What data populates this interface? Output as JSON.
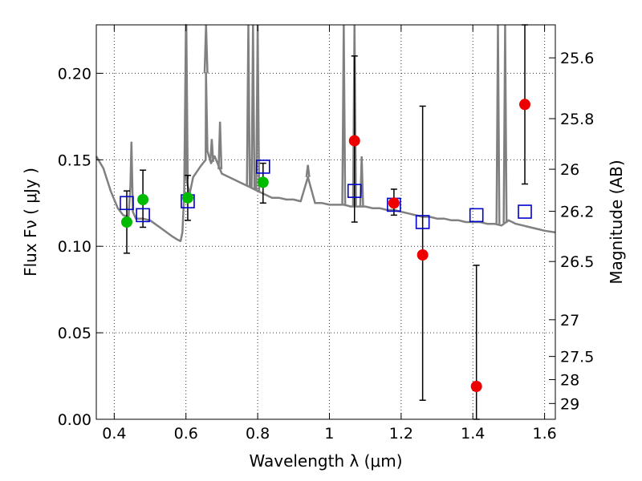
{
  "chart_data": {
    "type": "scatter",
    "xlabel": "Wavelength  λ (μm)",
    "ylabel": "Flux  Fν  ( μJy )",
    "y2label": "Magnitude (AB)",
    "xlim": [
      0.35,
      1.63
    ],
    "ylim": [
      0.0,
      0.228
    ],
    "grid": true,
    "x_ticks": [
      {
        "value": 0.4,
        "label": "0.4"
      },
      {
        "value": 0.6,
        "label": "0.6"
      },
      {
        "value": 0.8,
        "label": "0.8"
      },
      {
        "value": 1.0,
        "label": "1"
      },
      {
        "value": 1.2,
        "label": "1.2"
      },
      {
        "value": 1.4,
        "label": "1.4"
      },
      {
        "value": 1.6,
        "label": "1.6"
      }
    ],
    "y_ticks": [
      {
        "value": 0.0,
        "label": "0.00"
      },
      {
        "value": 0.05,
        "label": "0.05"
      },
      {
        "value": 0.1,
        "label": "0.10"
      },
      {
        "value": 0.15,
        "label": "0.15"
      },
      {
        "value": 0.2,
        "label": "0.20"
      }
    ],
    "y2_ticks": [
      {
        "mag": 25.6,
        "label": "25.6"
      },
      {
        "mag": 25.8,
        "label": "25.8"
      },
      {
        "mag": 26.0,
        "label": "26"
      },
      {
        "mag": 26.2,
        "label": "26.2"
      },
      {
        "mag": 26.5,
        "label": "26.5"
      },
      {
        "mag": 27.0,
        "label": "27"
      },
      {
        "mag": 27.5,
        "label": "27.5"
      },
      {
        "mag": 28.0,
        "label": "28"
      },
      {
        "mag": 29.0,
        "label": "29"
      }
    ],
    "model_spectrum": {
      "color": "#808080",
      "x": [
        0.35,
        0.37,
        0.39,
        0.41,
        0.425,
        0.44,
        0.445,
        0.448,
        0.452,
        0.46,
        0.48,
        0.5,
        0.52,
        0.54,
        0.56,
        0.575,
        0.585,
        0.59,
        0.595,
        0.6,
        0.6,
        0.6,
        0.61,
        0.62,
        0.64,
        0.655,
        0.656,
        0.66,
        0.67,
        0.68,
        0.7,
        0.72,
        0.74,
        0.76,
        0.78,
        0.79,
        0.8,
        0.82,
        0.84,
        0.86,
        0.88,
        0.9,
        0.92,
        0.94,
        0.96,
        0.98,
        1.0,
        1.02,
        1.04,
        1.06,
        1.08,
        1.1,
        1.12,
        1.14,
        1.16,
        1.18,
        1.2,
        1.22,
        1.24,
        1.26,
        1.28,
        1.3,
        1.32,
        1.34,
        1.36,
        1.38,
        1.4,
        1.42,
        1.44,
        1.46,
        1.48,
        1.5,
        1.52,
        1.54,
        1.56,
        1.58,
        1.6,
        1.63
      ],
      "y": [
        0.152,
        0.145,
        0.132,
        0.122,
        0.118,
        0.117,
        0.135,
        0.16,
        0.12,
        0.116,
        0.116,
        0.115,
        0.112,
        0.109,
        0.106,
        0.104,
        0.103,
        0.108,
        0.13,
        0.23,
        0.18,
        0.14,
        0.13,
        0.14,
        0.146,
        0.15,
        0.2,
        0.155,
        0.148,
        0.152,
        0.142,
        0.14,
        0.138,
        0.136,
        0.134,
        0.133,
        0.132,
        0.13,
        0.128,
        0.128,
        0.127,
        0.127,
        0.126,
        0.14,
        0.125,
        0.125,
        0.124,
        0.124,
        0.124,
        0.123,
        0.123,
        0.123,
        0.122,
        0.122,
        0.121,
        0.121,
        0.12,
        0.119,
        0.118,
        0.117,
        0.117,
        0.116,
        0.116,
        0.115,
        0.115,
        0.114,
        0.114,
        0.114,
        0.113,
        0.113,
        0.112,
        0.115,
        0.113,
        0.112,
        0.111,
        0.11,
        0.109,
        0.108
      ]
    },
    "emission_spikes": [
      {
        "x": 0.601,
        "peak": 0.23
      },
      {
        "x": 0.656,
        "peak": 0.23
      },
      {
        "x": 0.672,
        "peak": 0.162
      },
      {
        "x": 0.695,
        "peak": 0.172
      },
      {
        "x": 0.774,
        "peak": 0.23
      },
      {
        "x": 0.787,
        "peak": 0.23
      },
      {
        "x": 0.8,
        "peak": 0.23
      },
      {
        "x": 0.94,
        "peak": 0.147
      },
      {
        "x": 1.04,
        "peak": 0.23
      },
      {
        "x": 1.07,
        "peak": 0.23
      },
      {
        "x": 1.09,
        "peak": 0.152
      },
      {
        "x": 1.47,
        "peak": 0.23
      },
      {
        "x": 1.49,
        "peak": 0.23
      }
    ],
    "series": [
      {
        "marker": "square-open",
        "color": "#0000cc",
        "x": [
          0.435,
          0.48,
          0.605,
          0.815,
          1.07,
          1.18,
          1.26,
          1.41,
          1.545
        ],
        "y": [
          0.125,
          0.118,
          0.126,
          0.146,
          0.132,
          0.124,
          0.114,
          0.118,
          0.12
        ]
      },
      {
        "marker": "circle",
        "color": "#00bb00",
        "x": [
          0.435,
          0.48,
          0.605,
          0.815
        ],
        "y": [
          0.114,
          0.127,
          0.128,
          0.137
        ],
        "err_low": [
          0.096,
          0.111,
          0.115,
          0.125
        ],
        "err_high": [
          0.132,
          0.144,
          0.141,
          0.148
        ]
      },
      {
        "marker": "circle",
        "color": "#ee0000",
        "x": [
          1.07,
          1.18,
          1.26,
          1.41,
          1.545
        ],
        "y": [
          0.161,
          0.125,
          0.095,
          0.019,
          0.182
        ],
        "err_low": [
          0.114,
          0.118,
          0.011,
          0.0,
          0.136
        ],
        "err_high": [
          0.21,
          0.133,
          0.181,
          0.089,
          0.228
        ]
      }
    ]
  }
}
